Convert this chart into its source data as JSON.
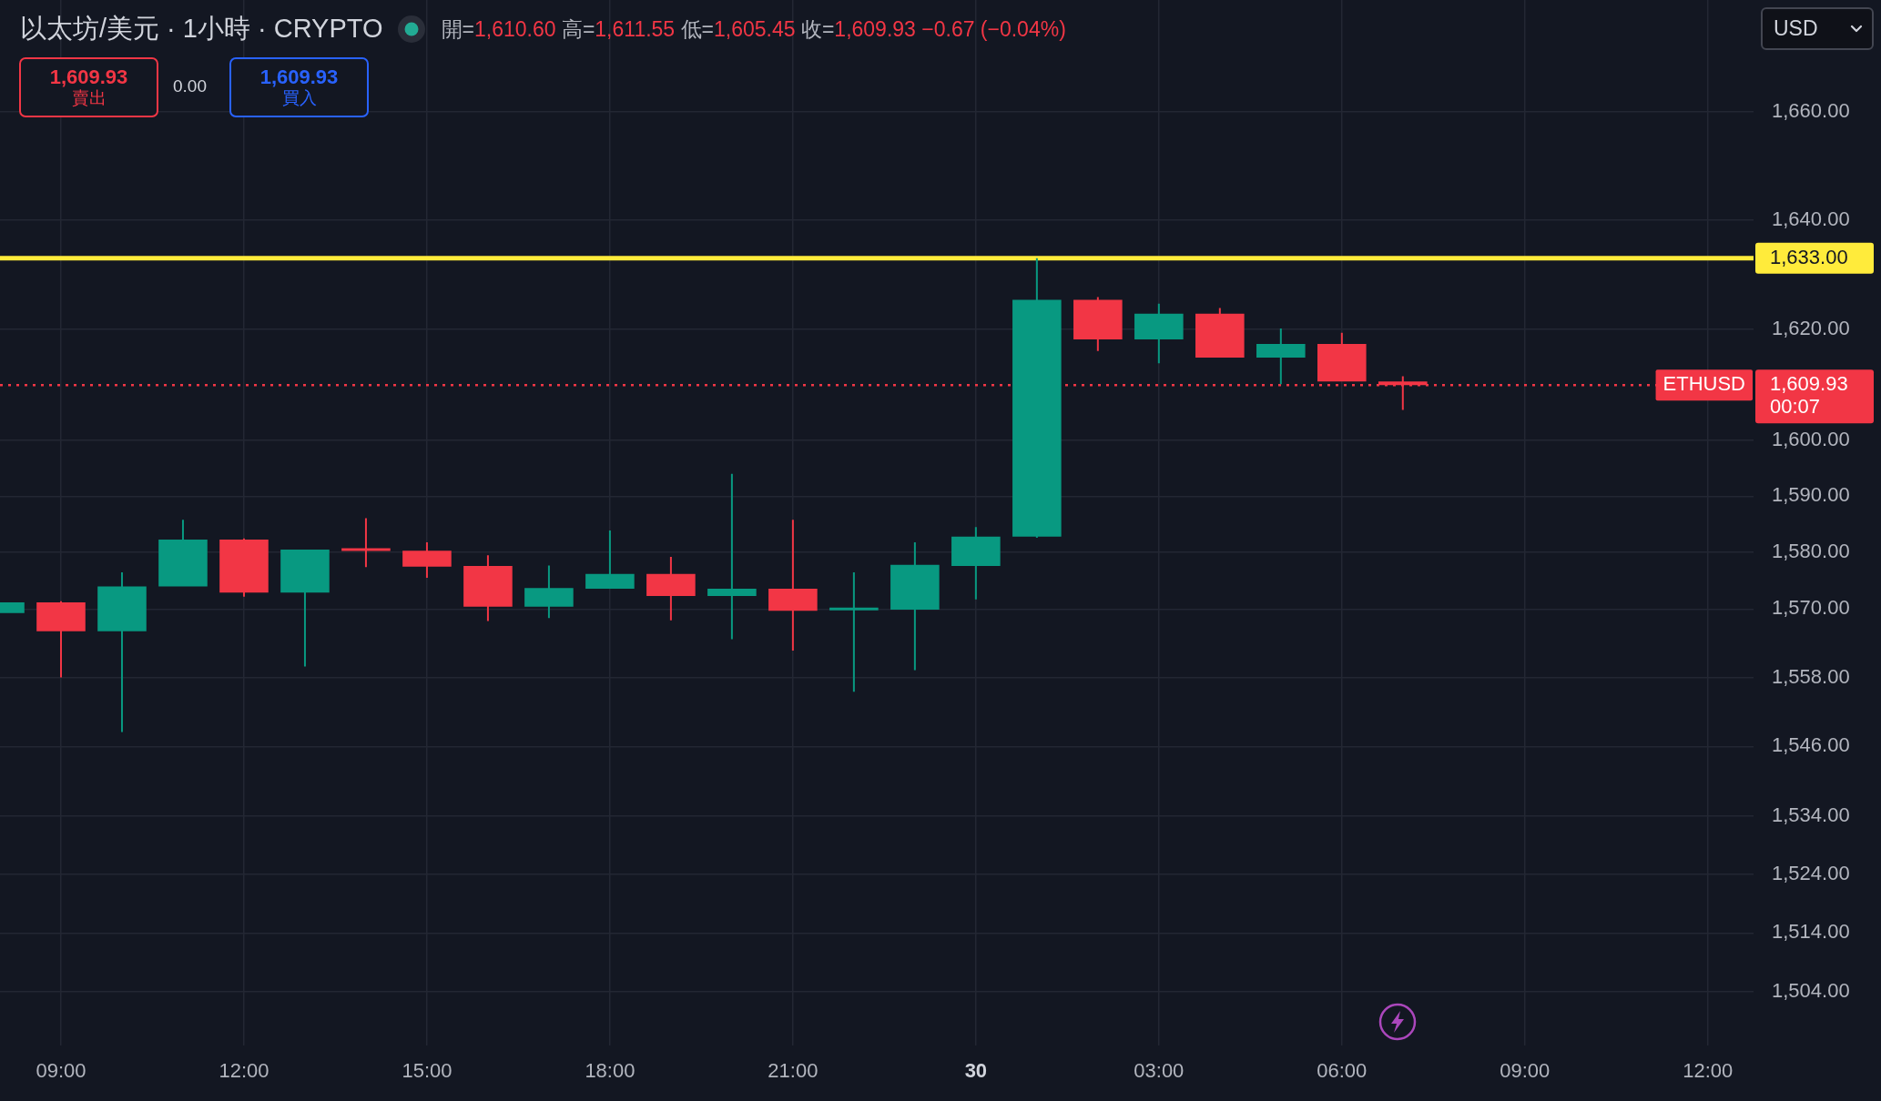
{
  "chart_data": {
    "type": "candlestick",
    "title": "以太坊/美元 · 1小時 · CRYPTO",
    "subtitle": "開=1,610.60 高=1,611.55 低=1,605.45 收=1,609.93 −0.67 (−0.04%)",
    "x": [
      "--01-29T08:00",
      "--01-29T09:00",
      "--01-29T10:00",
      "--01-29T11:00",
      "--01-29T12:00",
      "--01-29T13:00",
      "--01-29T14:00",
      "--01-29T15:00",
      "--01-29T16:00",
      "--01-29T17:00",
      "--01-29T18:00",
      "--01-29T19:00",
      "--01-29T20:00",
      "--01-29T21:00",
      "--01-29T22:00",
      "--01-29T23:00",
      "--01-30T00:00",
      "--01-30T01:00",
      "--01-30T02:00",
      "--01-30T03:00",
      "--01-30T04:00",
      "--01-30T05:00",
      "--01-30T06:00",
      "--01-30T07:00"
    ],
    "ohlc": [
      [
        1569.3,
        1571.2,
        1569.3,
        1571.2
      ],
      [
        1571.2,
        1571.4,
        1558.0,
        1566.1
      ],
      [
        1566.1,
        1576.5,
        1548.5,
        1574.0
      ],
      [
        1574.0,
        1585.8,
        1574.0,
        1582.3
      ],
      [
        1582.3,
        1582.5,
        1572.2,
        1572.9
      ],
      [
        1572.9,
        1580.5,
        1559.9,
        1580.5
      ],
      [
        1580.6,
        1586.1,
        1577.4,
        1580.4
      ],
      [
        1580.3,
        1581.8,
        1575.5,
        1577.5
      ],
      [
        1577.6,
        1579.5,
        1567.9,
        1570.4
      ],
      [
        1570.4,
        1577.7,
        1568.4,
        1573.7
      ],
      [
        1573.6,
        1583.9,
        1573.6,
        1576.2
      ],
      [
        1576.2,
        1579.2,
        1568.0,
        1572.3
      ],
      [
        1572.3,
        1594.0,
        1564.7,
        1573.6
      ],
      [
        1573.6,
        1585.8,
        1562.7,
        1569.7
      ],
      [
        1569.9,
        1576.5,
        1555.5,
        1570.1
      ],
      [
        1569.9,
        1581.8,
        1559.3,
        1577.8
      ],
      [
        1577.6,
        1584.5,
        1571.7,
        1582.8
      ],
      [
        1582.8,
        1633.0,
        1582.6,
        1625.4
      ],
      [
        1625.4,
        1625.9,
        1616.1,
        1618.2
      ],
      [
        1618.2,
        1624.7,
        1613.9,
        1622.9
      ],
      [
        1622.9,
        1623.9,
        1614.9,
        1614.9
      ],
      [
        1614.9,
        1620.2,
        1610.1,
        1617.4
      ],
      [
        1617.4,
        1619.4,
        1610.6,
        1610.6
      ],
      [
        1610.6,
        1611.55,
        1605.45,
        1609.93
      ]
    ],
    "colors": [
      "#089981",
      "#f23645",
      "#089981",
      "#089981",
      "#f23645",
      "#089981",
      "#f23645",
      "#f23645",
      "#f23645",
      "#089981",
      "#089981",
      "#f23645",
      "#089981",
      "#f23645",
      "#089981",
      "#089981",
      "#089981",
      "#089981",
      "#f23645",
      "#089981",
      "#f23645",
      "#089981",
      "#f23645",
      "#f23645"
    ],
    "xlim": [
      "--01-29T08:00",
      "--01-30T12:45"
    ],
    "xticks": [
      {
        "value": "--01-29T09:00",
        "label": "09:00"
      },
      {
        "value": "--01-29T12:00",
        "label": "12:00"
      },
      {
        "value": "--01-29T15:00",
        "label": "15:00"
      },
      {
        "value": "--01-29T18:00",
        "label": "18:00"
      },
      {
        "value": "--01-29T21:00",
        "label": "21:00"
      },
      {
        "value": "--01-30",
        "label": "30"
      },
      {
        "value": "--01-30T03:00",
        "label": "03:00"
      },
      {
        "value": "--01-30T06:00",
        "label": "06:00"
      },
      {
        "value": "--01-30T09:00",
        "label": "09:00"
      },
      {
        "value": "--01-30T12:00",
        "label": "12:00"
      }
    ],
    "ylim": [
      1495,
      1681
    ],
    "yticks": [
      {
        "value": 1660,
        "label": "1,660.00"
      },
      {
        "value": 1640,
        "label": "1,640.00"
      },
      {
        "value": 1620,
        "label": "1,620.00"
      },
      {
        "value": 1600,
        "label": "1,600.00"
      },
      {
        "value": 1590,
        "label": "1,590.00"
      },
      {
        "value": 1580,
        "label": "1,580.00"
      },
      {
        "value": 1570,
        "label": "1,570.00"
      },
      {
        "value": 1558,
        "label": "1,558.00"
      },
      {
        "value": 1546,
        "label": "1,546.00"
      },
      {
        "value": 1534,
        "label": "1,534.00"
      },
      {
        "value": 1524,
        "label": "1,524.00"
      },
      {
        "value": 1514,
        "label": "1,514.00"
      },
      {
        "value": 1504,
        "label": "1,504.00"
      }
    ],
    "log": true,
    "grid": true,
    "ref_lines": [
      {
        "axis": "y",
        "value": 1633,
        "label": "1,633.00",
        "color": "#ffeb3b"
      },
      {
        "axis": "y",
        "value": 1609.93,
        "label": "1,609.93",
        "color": "#f23645",
        "line_style": "dotted"
      }
    ],
    "annotations": [
      "1,609.93",
      "賣出",
      "0.00",
      "1,609.93",
      "買入",
      "USD",
      "ETHUSD",
      "00:07"
    ]
  }
}
